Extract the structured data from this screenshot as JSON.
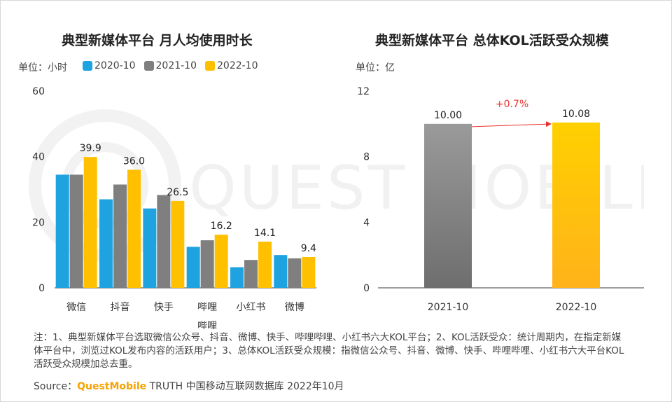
{
  "notes": "注：1、典型新媒体平台选取微信公众号、抖音、微博、快手、哔哩哔哩、小红书六大KOL平台；2、KOL活跃受众：统计周期内，在指定新媒体平台中，浏览过KOL发布内容的活跃用户；3、总体KOL活跃受众规模：指微信公众号、抖音、微博、快手、哔哩哔哩、小红书六大平台KOL活跃受众规模加总去重。",
  "source": {
    "prefix": "Source：",
    "brand": "QuestMobile",
    "suffix": " TRUTH 中国移动互联网数据库 2022年10月"
  },
  "watermark_text": "QUEST MOBILE",
  "chart_data": [
    {
      "type": "bar",
      "title": "典型新媒体平台 月人均使用时长",
      "unit": "单位：小时",
      "categories": [
        "微信",
        "抖音",
        "快手",
        "哔哩哔哩",
        "小红书",
        "微博"
      ],
      "series": [
        {
          "name": "2020-10",
          "color": "#1ea3e0",
          "values": [
            34.5,
            27.0,
            24.2,
            12.5,
            6.3,
            10.0
          ]
        },
        {
          "name": "2021-10",
          "color": "#7f7f7f",
          "values": [
            34.5,
            31.5,
            28.3,
            14.5,
            8.5,
            9.0
          ]
        },
        {
          "name": "2022-10",
          "color": "#ffc000",
          "values": [
            39.9,
            36.0,
            26.5,
            16.2,
            14.1,
            9.4
          ]
        }
      ],
      "data_labels": {
        "series": "2022-10",
        "values": [
          "39.9",
          "36.0",
          "26.5",
          "16.2",
          "14.1",
          "9.4"
        ]
      },
      "ylim": [
        0,
        60
      ],
      "yticks": [
        0,
        20,
        40,
        60
      ],
      "legend_position": "top-left"
    },
    {
      "type": "bar",
      "title": "典型新媒体平台 总体KOL活跃受众规模",
      "unit": "单位：亿",
      "categories": [
        "2021-10",
        "2022-10"
      ],
      "values": [
        10.0,
        10.08
      ],
      "value_labels": [
        "10.00",
        "10.08"
      ],
      "colors": [
        "#7f7f7f",
        "#ffc000"
      ],
      "ylim": [
        0,
        12
      ],
      "yticks": [
        0,
        4,
        8,
        12
      ],
      "growth_label": "+0.7%",
      "growth_color": "#e8322e"
    }
  ]
}
